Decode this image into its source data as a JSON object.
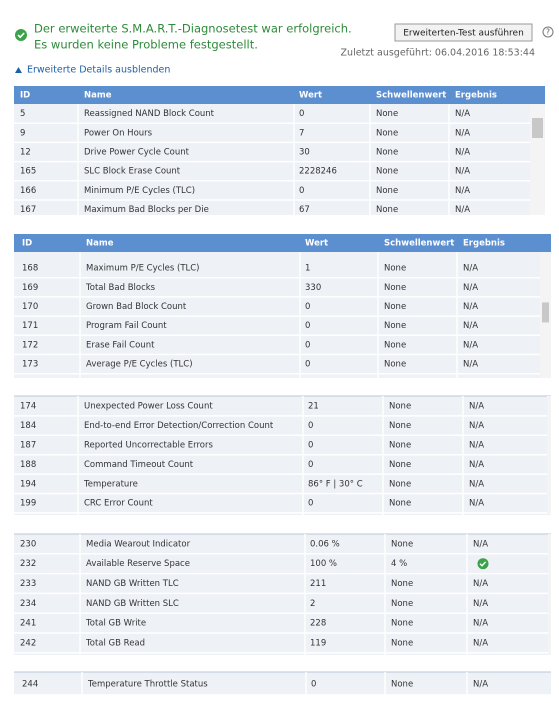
{
  "status": {
    "lines": [
      "Der erweiterte S.M.A.R.T.-Diagnosetest war erfolgreich.",
      "Es wurden keine Probleme festgestellt."
    ]
  },
  "button": "Erweiterten-Test ausführen",
  "help": "?",
  "last_run": "Zuletzt ausgeführt: 06.04.2016 18:53:44",
  "toggle": "Erweiterte Details ausblenden",
  "tables": [
    {
      "header": [
        "ID",
        "Name",
        "Wert",
        "Schwellenwert",
        "Ergebnis"
      ],
      "rows": [
        [
          "5",
          "Reassigned NAND Block Count",
          "0",
          "None",
          "N/A"
        ],
        [
          "9",
          "Power On Hours",
          "7",
          "None",
          "N/A"
        ],
        [
          "12",
          "Drive Power Cycle Count",
          "30",
          "None",
          "N/A"
        ],
        [
          "165",
          "SLC Block Erase Count",
          "2228246",
          "None",
          "N/A"
        ],
        [
          "166",
          "Minimum P/E Cycles (TLC)",
          "0",
          "None",
          "N/A"
        ],
        [
          "167",
          "Maximum Bad Blocks per Die",
          "67",
          "None",
          "N/A"
        ]
      ]
    },
    {
      "header": [
        "ID",
        "Name",
        "Wert",
        "Schwellenwert",
        "Ergebnis"
      ],
      "rows": [
        [
          "168",
          "Maximum P/E Cycles (TLC)",
          "1",
          "None",
          "N/A"
        ],
        [
          "169",
          "Total Bad Blocks",
          "330",
          "None",
          "N/A"
        ],
        [
          "170",
          "Grown Bad Block Count",
          "0",
          "None",
          "N/A"
        ],
        [
          "171",
          "Program Fail Count",
          "0",
          "None",
          "N/A"
        ],
        [
          "172",
          "Erase Fail Count",
          "0",
          "None",
          "N/A"
        ],
        [
          "173",
          "Average P/E Cycles (TLC)",
          "0",
          "None",
          "N/A"
        ]
      ]
    },
    {
      "rows": [
        [
          "174",
          "Unexpected Power Loss Count",
          "21",
          "None",
          "N/A"
        ],
        [
          "184",
          "End-to-end Error Detection/Correction Count",
          "0",
          "None",
          "N/A"
        ],
        [
          "187",
          "Reported Uncorrectable Errors",
          "0",
          "None",
          "N/A"
        ],
        [
          "188",
          "Command Timeout Count",
          "0",
          "None",
          "N/A"
        ],
        [
          "194",
          "Temperature",
          "86° F | 30° C",
          "None",
          "N/A"
        ],
        [
          "199",
          "CRC Error Count",
          "0",
          "None",
          "N/A"
        ]
      ]
    },
    {
      "rows": [
        [
          "230",
          "Media Wearout Indicator",
          "0.06 %",
          "None",
          "N/A"
        ],
        [
          "232",
          "Available Reserve Space",
          "100 %",
          "4 %"
        ],
        [
          "233",
          "NAND GB Written TLC",
          "211",
          "None",
          "N/A"
        ],
        [
          "234",
          "NAND GB Written SLC",
          "2",
          "None",
          "N/A"
        ],
        [
          "241",
          "Total GB Write",
          "228",
          "None",
          "N/A"
        ],
        [
          "242",
          "Total GB Read",
          "119",
          "None",
          "N/A"
        ]
      ]
    },
    {
      "rows": [
        [
          "244",
          "Temperature Throttle Status",
          "0",
          "None",
          "N/A"
        ]
      ]
    }
  ]
}
